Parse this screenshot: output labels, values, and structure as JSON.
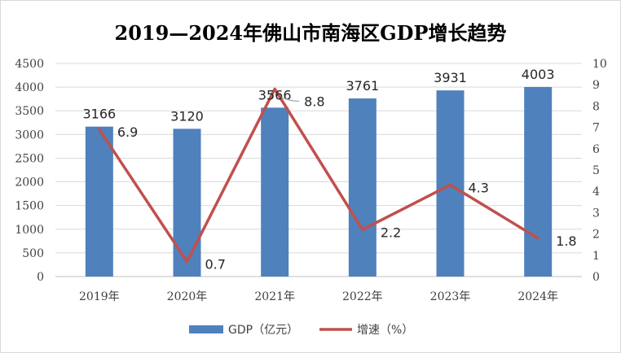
{
  "chart_data": {
    "type": "bar",
    "title": "2019—2024年佛山市南海区GDP增长趋势",
    "categories": [
      "2019年",
      "2020年",
      "2021年",
      "2022年",
      "2023年",
      "2024年"
    ],
    "series": [
      {
        "name": "GDP（亿元）",
        "type": "bar",
        "axis": "left",
        "color": "#4f81bd",
        "values": [
          3166,
          3120,
          3566,
          3761,
          3931,
          4003
        ],
        "labels": [
          "3166",
          "3120",
          "3566",
          "3761",
          "3931",
          "4003"
        ]
      },
      {
        "name": "增速（%）",
        "type": "line",
        "axis": "right",
        "color": "#c0504d",
        "values": [
          6.9,
          0.7,
          8.8,
          2.2,
          4.3,
          1.8
        ],
        "labels": [
          "6.9",
          "0.7",
          "8.8",
          "2.2",
          "4.3",
          "1.8"
        ]
      }
    ],
    "y_left": {
      "min": 0,
      "max": 4500,
      "step": 500,
      "tick_labels": [
        "0",
        "500",
        "1000",
        "1500",
        "2000",
        "2500",
        "3000",
        "3500",
        "4000",
        "4500"
      ]
    },
    "y_right": {
      "min": 0,
      "max": 10,
      "step": 1,
      "tick_labels": [
        "0",
        "1",
        "2",
        "3",
        "4",
        "5",
        "6",
        "7",
        "8",
        "9",
        "10"
      ]
    },
    "grid": true,
    "legend": "bottom-center"
  }
}
